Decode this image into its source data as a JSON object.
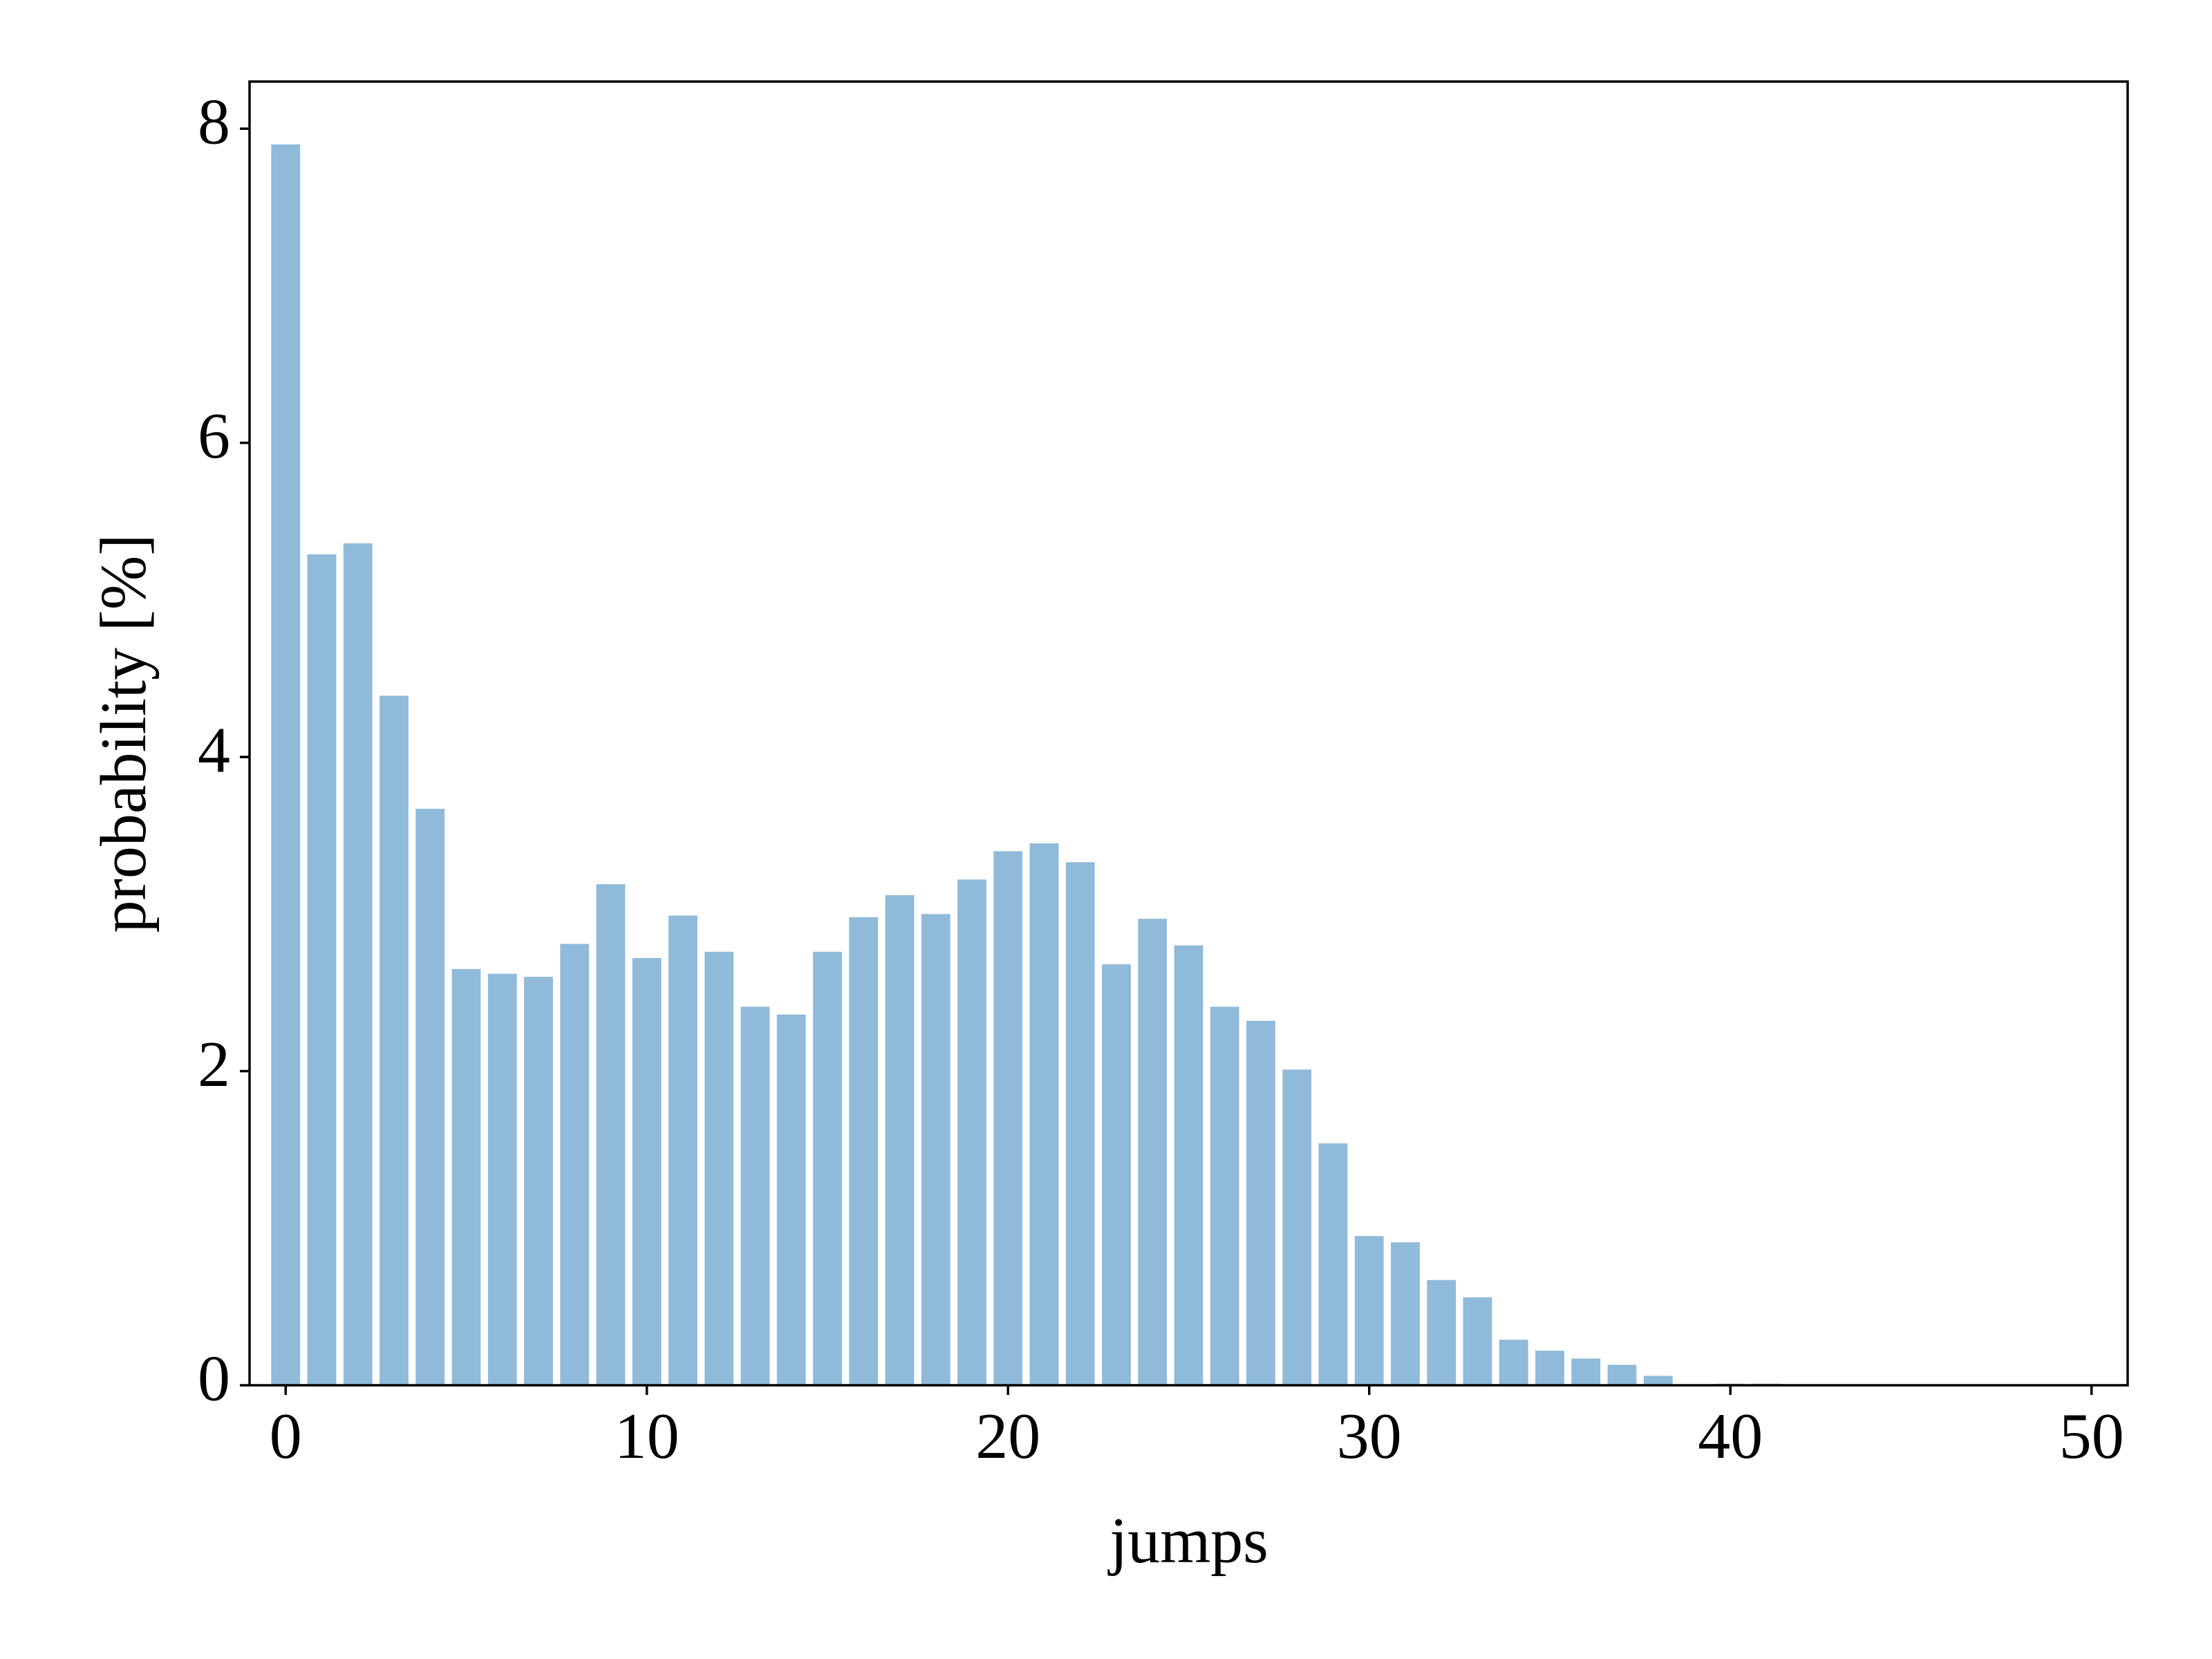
{
  "chart_data": {
    "type": "bar",
    "xlabel": "jumps",
    "ylabel": "probability [%]",
    "x": [
      0,
      1,
      2,
      3,
      4,
      5,
      6,
      7,
      8,
      9,
      10,
      11,
      12,
      13,
      14,
      15,
      16,
      17,
      18,
      19,
      20,
      21,
      22,
      23,
      24,
      25,
      26,
      27,
      28,
      29,
      30,
      31,
      32,
      33,
      34,
      35,
      36,
      37,
      38,
      39,
      40,
      41
    ],
    "values": [
      7.9,
      5.29,
      5.36,
      4.39,
      3.67,
      2.65,
      2.62,
      2.6,
      2.81,
      3.19,
      2.72,
      2.99,
      2.76,
      2.41,
      2.36,
      2.76,
      2.98,
      3.12,
      3.0,
      3.22,
      3.4,
      3.45,
      3.33,
      2.68,
      2.97,
      2.8,
      2.41,
      2.32,
      2.01,
      1.54,
      0.95,
      0.91,
      0.67,
      0.56,
      0.29,
      0.22,
      0.17,
      0.13,
      0.06,
      0,
      0.01,
      0.01
    ],
    "color": "#8fbad9",
    "xlim": [
      -1,
      51
    ],
    "xticks": [
      0,
      10,
      20,
      30,
      40,
      50
    ],
    "ylim": [
      0,
      8.3
    ],
    "yticks": [
      0,
      2,
      4,
      6,
      8
    ],
    "grid": false
  }
}
